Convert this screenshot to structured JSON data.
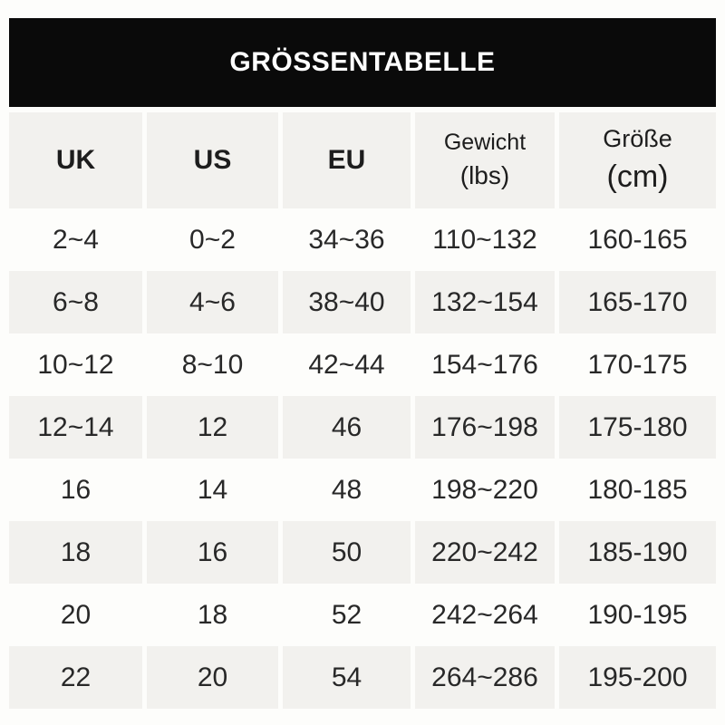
{
  "title": "GRÖSSENTABELLE",
  "colors": {
    "banner_bg": "#0a0a0a",
    "banner_text": "#ffffff",
    "shaded_row_bg": "#f2f1ee",
    "page_bg": "#fdfdfb",
    "text": "#282828"
  },
  "table": {
    "columns": [
      {
        "label": "UK",
        "unit": ""
      },
      {
        "label": "US",
        "unit": ""
      },
      {
        "label": "EU",
        "unit": ""
      },
      {
        "label": "Gewicht",
        "unit": "(lbs)"
      },
      {
        "label": "Größe",
        "unit": "(cm)"
      }
    ],
    "rows": [
      [
        "2~4",
        "0~2",
        "34~36",
        "110~132",
        "160-165"
      ],
      [
        "6~8",
        "4~6",
        "38~40",
        "132~154",
        "165-170"
      ],
      [
        "10~12",
        "8~10",
        "42~44",
        "154~176",
        "170-175"
      ],
      [
        "12~14",
        "12",
        "46",
        "176~198",
        "175-180"
      ],
      [
        "16",
        "14",
        "48",
        "198~220",
        "180-185"
      ],
      [
        "18",
        "16",
        "50",
        "220~242",
        "185-190"
      ],
      [
        "20",
        "18",
        "52",
        "242~264",
        "190-195"
      ],
      [
        "22",
        "20",
        "54",
        "264~286",
        "195-200"
      ]
    ]
  }
}
